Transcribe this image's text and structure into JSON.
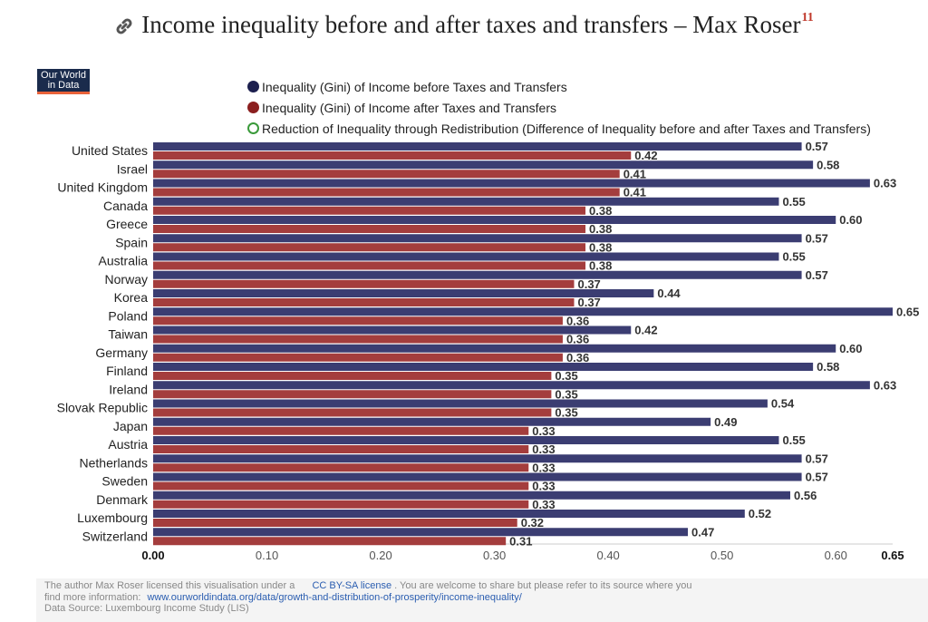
{
  "title": "Income inequality before and after taxes and transfers – Max Roser",
  "title_sup": "11",
  "logo": {
    "line1": "Our World",
    "line2": "in Data"
  },
  "chart_data": {
    "type": "bar",
    "orientation": "horizontal",
    "categories": [
      "United States",
      "Israel",
      "United Kingdom",
      "Canada",
      "Greece",
      "Spain",
      "Australia",
      "Norway",
      "Korea",
      "Poland",
      "Taiwan",
      "Germany",
      "Finland",
      "Ireland",
      "Slovak Republic",
      "Japan",
      "Austria",
      "Netherlands",
      "Sweden",
      "Denmark",
      "Luxembourg",
      "Switzerland"
    ],
    "series": [
      {
        "name": "Inequality (Gini) of Income before Taxes and Transfers",
        "color": "#3b3d72",
        "values": [
          0.57,
          0.58,
          0.63,
          0.55,
          0.6,
          0.57,
          0.55,
          0.57,
          0.44,
          0.65,
          0.42,
          0.6,
          0.58,
          0.63,
          0.54,
          0.49,
          0.55,
          0.57,
          0.57,
          0.56,
          0.52,
          0.47
        ]
      },
      {
        "name": "Inequality (Gini) of Income after Taxes and Transfers",
        "color": "#a43d3d",
        "values": [
          0.42,
          0.41,
          0.41,
          0.38,
          0.38,
          0.38,
          0.38,
          0.37,
          0.37,
          0.36,
          0.36,
          0.36,
          0.35,
          0.35,
          0.35,
          0.33,
          0.33,
          0.33,
          0.33,
          0.33,
          0.32,
          0.31
        ]
      }
    ],
    "extra_legend": {
      "name": "Reduction of Inequality through Redistribution (Difference of Inequality before and after Taxes and Transfers)",
      "color": "#3a9a3a"
    },
    "xlim": [
      0,
      0.65
    ],
    "xticks": [
      "0.00",
      "0.10",
      "0.20",
      "0.30",
      "0.40",
      "0.50",
      "0.60",
      "0.65"
    ]
  },
  "footer": {
    "line1_pre": "The author Max Roser licensed this visualisation under a",
    "license": "CC BY-SA license",
    "line1_post": ". You are welcome to share but please refer to its source where you",
    "line2_pre": "find more information:",
    "url": "www.ourworldindata.org/data/growth-and-distribution-of-prosperity/income-inequality/",
    "line3": "Data Source: Luxembourg Income Study (LIS)"
  }
}
